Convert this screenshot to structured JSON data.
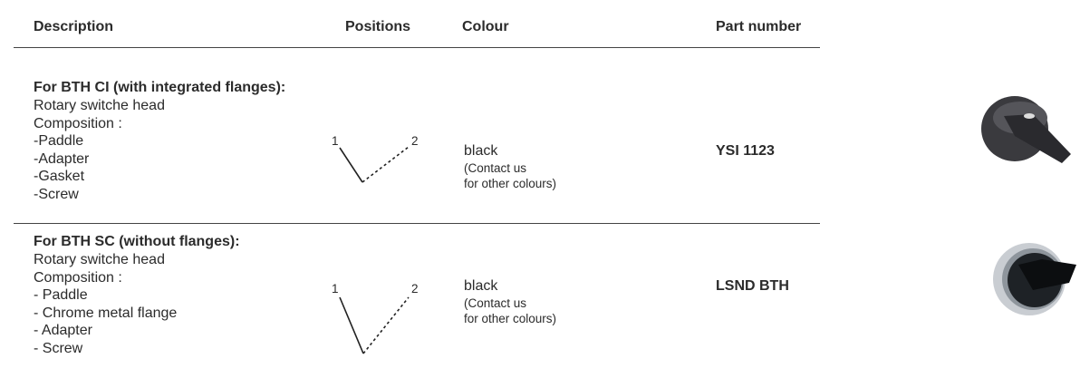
{
  "table": {
    "headers": [
      "Description",
      "Positions",
      "Colour",
      "Part number"
    ],
    "rows": [
      {
        "title": "For BTH CI (with integrated flanges):",
        "description": [
          "Rotary switche head",
          "Composition :",
          "-Paddle",
          "-Adapter",
          "-Gasket",
          "-Screw"
        ],
        "positions": [
          "1",
          "2"
        ],
        "colour": "black",
        "colour_note": [
          "(Contact us",
          "for other colours)"
        ],
        "part_number": "YSI 1123"
      },
      {
        "title": "For BTH SC (without flanges):",
        "description": [
          "Rotary switche head",
          "Composition :",
          "- Paddle",
          "- Chrome metal flange",
          "- Adapter",
          "- Screw"
        ],
        "positions": [
          "1",
          "2"
        ],
        "colour": "black",
        "colour_note": [
          "(Contact us",
          "for other colours)"
        ],
        "part_number": "LSND BTH"
      }
    ]
  }
}
